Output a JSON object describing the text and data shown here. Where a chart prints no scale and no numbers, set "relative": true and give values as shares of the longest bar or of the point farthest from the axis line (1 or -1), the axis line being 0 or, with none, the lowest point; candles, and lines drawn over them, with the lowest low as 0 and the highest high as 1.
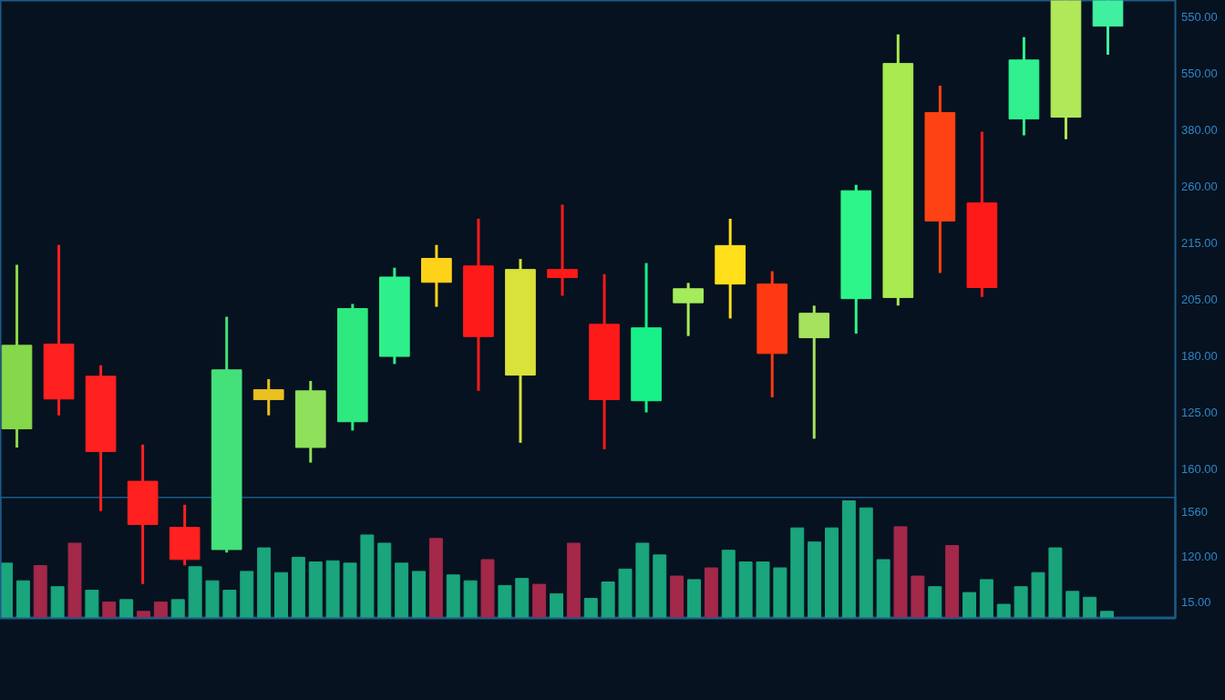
{
  "chart_data": [
    {
      "type": "candlestick",
      "relative": true,
      "categories": [
        null,
        null,
        null,
        null,
        null,
        null,
        null,
        null,
        null,
        null,
        null,
        null,
        null,
        null,
        null,
        null,
        null,
        null,
        null,
        null,
        null,
        null,
        null,
        null,
        null,
        null,
        null
      ],
      "ohlc": [
        [
          0.266,
          0.547,
          0.234,
          0.409
        ],
        [
          0.411,
          0.581,
          0.289,
          0.317
        ],
        [
          0.356,
          0.375,
          0.125,
          0.227
        ],
        [
          0.176,
          0.239,
          0.0,
          0.102
        ],
        [
          0.097,
          0.136,
          0.032,
          0.042
        ],
        [
          0.059,
          0.458,
          0.054,
          0.367
        ],
        [
          0.316,
          0.351,
          0.289,
          0.333
        ],
        [
          0.234,
          0.348,
          0.208,
          0.331
        ],
        [
          0.278,
          0.48,
          0.263,
          0.472
        ],
        [
          0.39,
          0.542,
          0.377,
          0.526
        ],
        [
          0.517,
          0.581,
          0.475,
          0.558
        ],
        [
          0.545,
          0.626,
          0.331,
          0.424
        ],
        [
          0.358,
          0.557,
          0.242,
          0.539
        ],
        [
          0.539,
          0.65,
          0.494,
          0.525
        ],
        [
          0.445,
          0.531,
          0.231,
          0.316
        ],
        [
          0.314,
          0.55,
          0.294,
          0.439
        ],
        [
          0.482,
          0.516,
          0.425,
          0.506
        ],
        [
          0.514,
          0.626,
          0.455,
          0.58
        ],
        [
          0.514,
          0.536,
          0.32,
          0.395
        ],
        [
          0.422,
          0.477,
          0.249,
          0.464
        ],
        [
          0.489,
          0.684,
          0.429,
          0.674
        ],
        [
          0.491,
          0.942,
          0.477,
          0.892
        ],
        [
          0.808,
          0.854,
          0.533,
          0.622
        ],
        [
          0.653,
          0.775,
          0.492,
          0.508
        ],
        [
          0.797,
          0.937,
          0.769,
          0.898
        ],
        [
          0.8,
          1.0,
          0.762,
          1.0
        ],
        [
          0.956,
          1.0,
          0.907,
          1.0
        ]
      ],
      "colors": [
        "#86d84a",
        "#ff2020",
        "#ff2020",
        "#ff2020",
        "#ff2020",
        "#44e07a",
        "#e8c020",
        "#8fe05a",
        "#2ee880",
        "#2ef08a",
        "#ffd21a",
        "#ff1a1a",
        "#d8e23a",
        "#ff1a1a",
        "#ff1a1a",
        "#18f08a",
        "#a4ec5c",
        "#ffe01a",
        "#ff3a12",
        "#a6e25e",
        "#2ef58a",
        "#a8ea50",
        "#ff4214",
        "#ff1a1a",
        "#30f090",
        "#b0e85a",
        "#40f0a0"
      ],
      "annotations": [
        "550.00",
        "550.00",
        "380.00",
        "260.00",
        "215.00",
        "205.00",
        "180.00",
        "125.00",
        "160.00"
      ]
    },
    {
      "type": "bar",
      "relative": true,
      "categories": [
        null,
        null,
        null,
        null,
        null,
        null,
        null,
        null,
        null,
        null,
        null,
        null,
        null,
        null,
        null,
        null,
        null,
        null,
        null,
        null,
        null,
        null,
        null,
        null,
        null,
        null,
        null,
        null,
        null,
        null,
        null,
        null,
        null,
        null,
        null,
        null,
        null,
        null,
        null,
        null,
        null,
        null,
        null,
        null,
        null,
        null,
        null,
        null,
        null,
        null,
        null,
        null,
        null,
        null,
        null,
        null,
        null,
        null,
        null,
        null,
        null,
        null,
        null,
        null,
        null
      ],
      "values": [
        0.47,
        0.32,
        0.45,
        0.27,
        0.64,
        0.24,
        0.14,
        0.16,
        0.06,
        0.14,
        0.16,
        0.44,
        0.32,
        0.24,
        0.4,
        0.6,
        0.39,
        0.52,
        0.48,
        0.49,
        0.47,
        0.71,
        0.64,
        0.47,
        0.4,
        0.68,
        0.37,
        0.32,
        0.5,
        0.28,
        0.34,
        0.29,
        0.21,
        0.64,
        0.17,
        0.31,
        0.42,
        0.64,
        0.54,
        0.36,
        0.33,
        0.43,
        0.58,
        0.48,
        0.48,
        0.43,
        0.77,
        0.65,
        0.77,
        1.0,
        0.94,
        0.5,
        0.78,
        0.36,
        0.27,
        0.62,
        0.22,
        0.33,
        0.12,
        0.27,
        0.39,
        0.6,
        0.23,
        0.18,
        0.06
      ],
      "colors": [
        "#1aa57c",
        "#1aa57c",
        "#a3284a",
        "#1aa57c",
        "#a3284a",
        "#1aa57c",
        "#a3284a",
        "#1aa57c",
        "#a3284a",
        "#a3284a",
        "#1aa57c",
        "#1aa57c",
        "#1aa57c",
        "#1aa57c",
        "#1aa57c",
        "#1aa57c",
        "#1aa57c",
        "#1aa57c",
        "#1aa57c",
        "#1aa57c",
        "#1aa57c",
        "#1aa57c",
        "#1aa57c",
        "#1aa57c",
        "#1aa57c",
        "#a3284a",
        "#1aa57c",
        "#1aa57c",
        "#a3284a",
        "#1aa57c",
        "#1aa57c",
        "#a3284a",
        "#1aa57c",
        "#a3284a",
        "#1aa57c",
        "#1aa57c",
        "#1aa57c",
        "#1aa57c",
        "#1aa57c",
        "#a3284a",
        "#1aa57c",
        "#a3284a",
        "#1aa57c",
        "#1aa57c",
        "#1aa57c",
        "#1aa57c",
        "#1aa57c",
        "#1aa57c",
        "#1aa57c",
        "#1aa57c",
        "#1aa57c",
        "#1aa57c",
        "#a3284a",
        "#a3284a",
        "#1aa57c",
        "#a3284a",
        "#1aa57c",
        "#1aa57c",
        "#1aa57c",
        "#1aa57c",
        "#1aa57c",
        "#1aa57c",
        "#1aa57c",
        "#1aa57c",
        "#1aa57c"
      ],
      "annotations": [
        "1560",
        "120.00",
        "15.00"
      ]
    }
  ]
}
